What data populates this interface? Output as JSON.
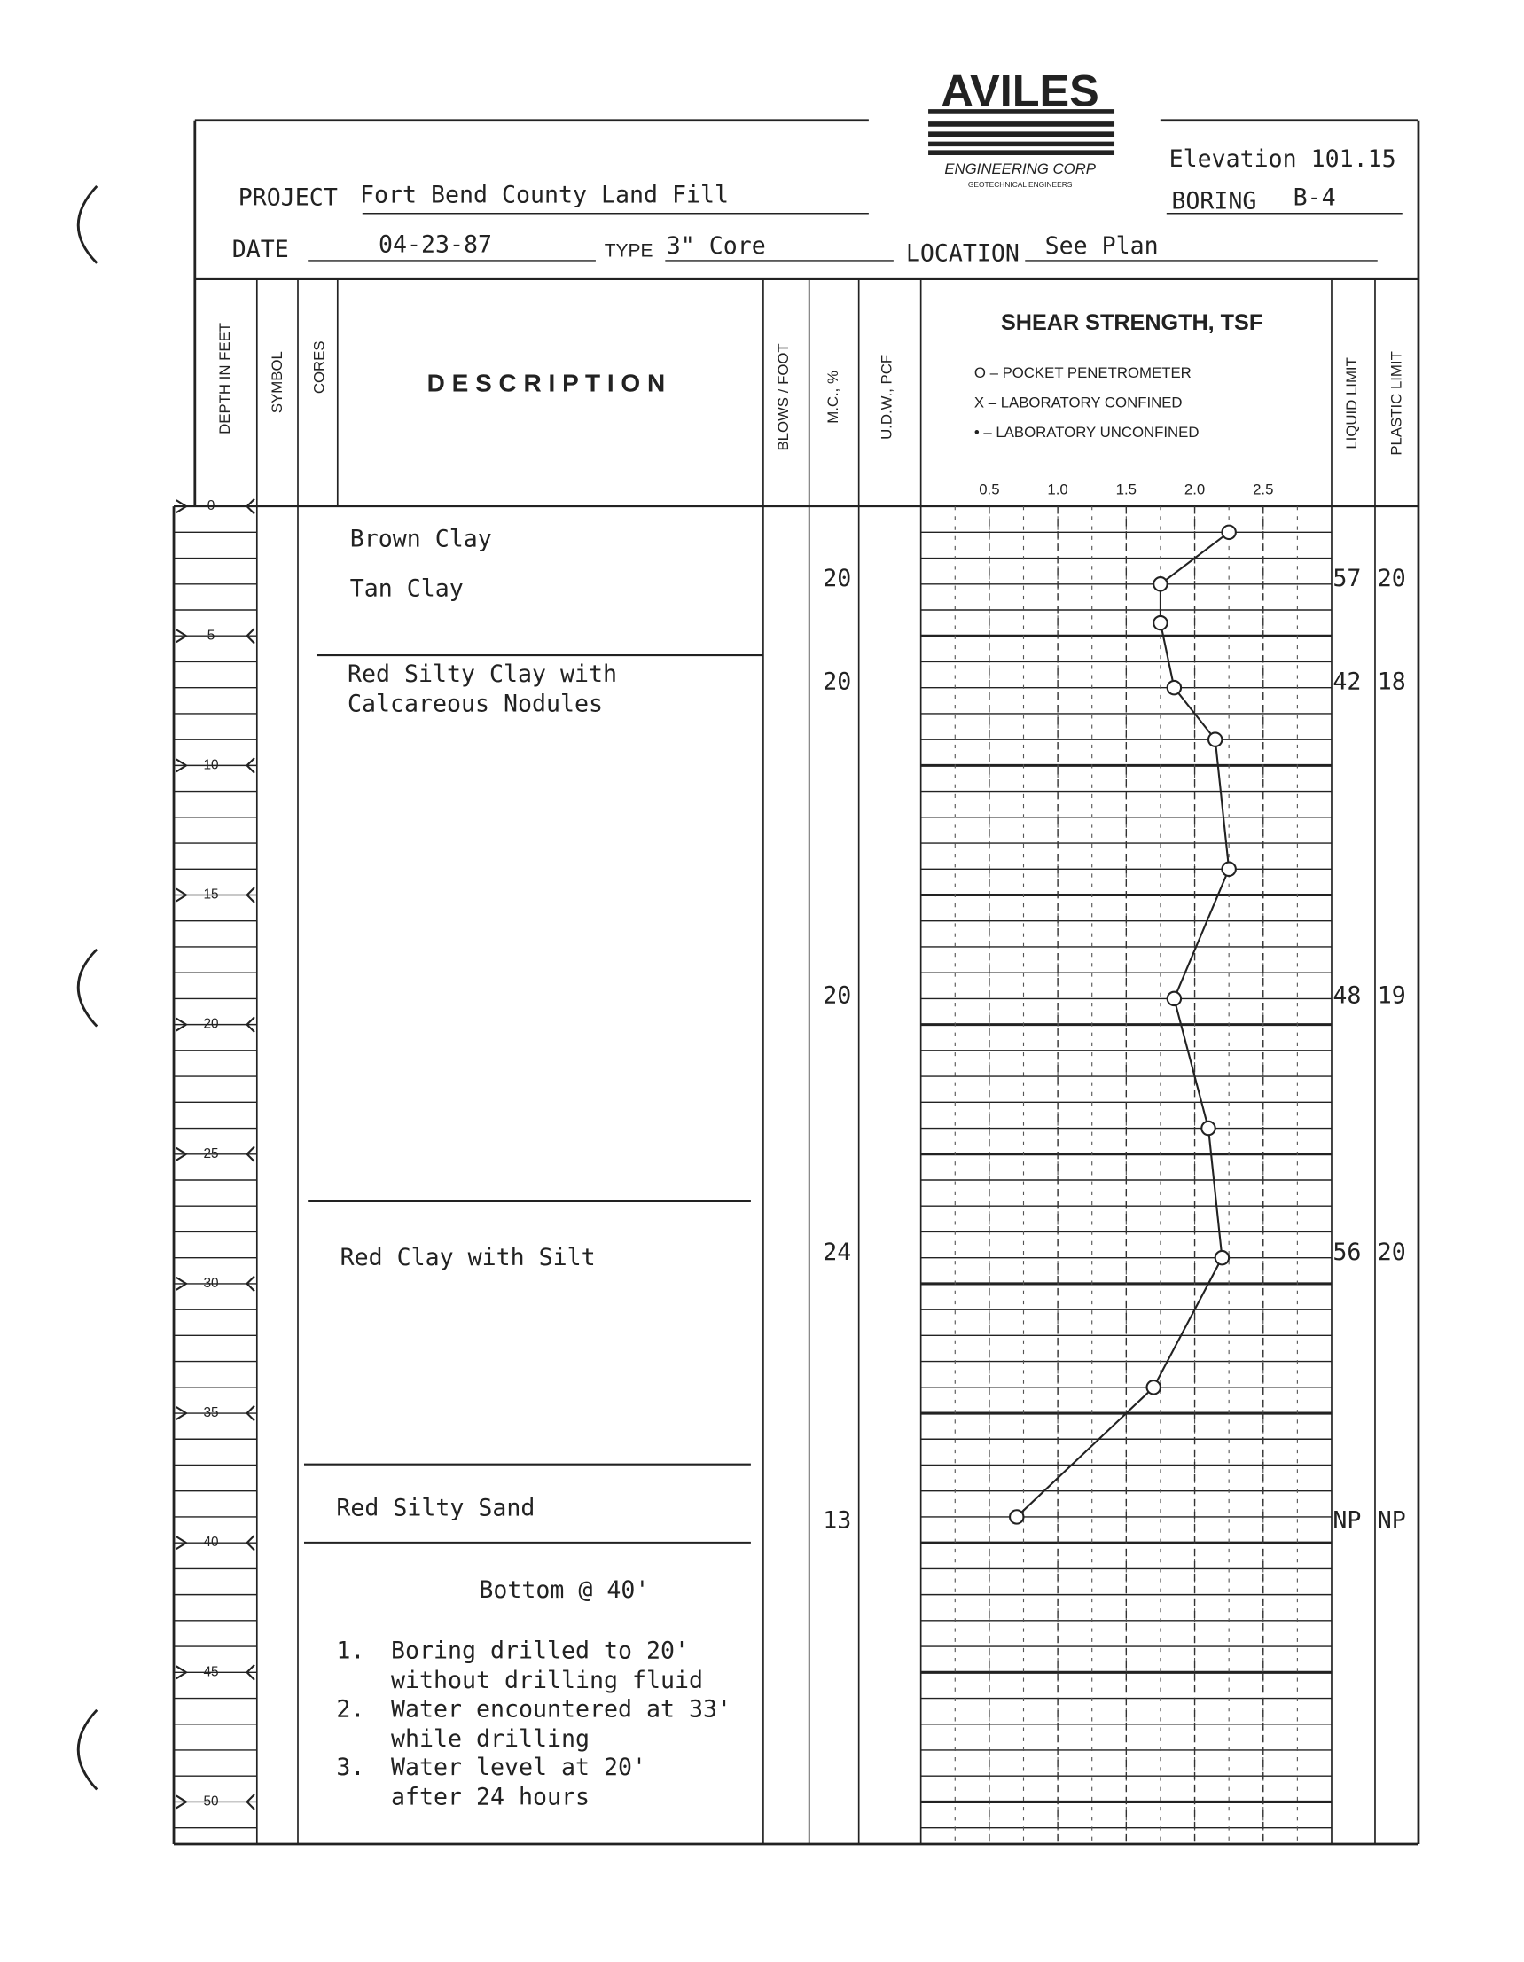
{
  "logo": {
    "name": "AVILES",
    "line1": "ENGINEERING CORP",
    "line2": "GEOTECHNICAL ENGINEERS"
  },
  "header": {
    "project_label": "PROJECT",
    "project": "Fort Bend County Land Fill",
    "date_label": "DATE",
    "date": "04-23-87",
    "type_label": "TYPE",
    "type": "3\" Core",
    "location_label": "LOCATION",
    "location": "See Plan",
    "elevation": "Elevation 101.15",
    "boring_label": "BORING",
    "boring": "B-4"
  },
  "columns": {
    "depth": "DEPTH IN FEET",
    "symbol": "SYMBOL",
    "cores": "CORES",
    "description": "D E S C R I P T I O N",
    "blows": "BLOWS / FOOT",
    "mc": "M.C., %",
    "udw": "U.D.W., PCF",
    "liquid": "LIQUID LIMIT",
    "plastic": "PLASTIC LIMIT"
  },
  "shear": {
    "title": "SHEAR STRENGTH, TSF",
    "legend": [
      "O  –  POCKET PENETROMETER",
      "X  –  LABORATORY   CONFINED",
      "•  –  LABORATORY UNCONFINED"
    ],
    "xlim": [
      0,
      3
    ],
    "xticks": [
      0.5,
      {
        "value": 1,
        "label": "1.0"
      },
      1.5,
      {
        "value": 2,
        "label": "2.0"
      },
      2.5
    ],
    "depth": [
      1,
      3,
      4.5,
      7,
      9,
      14,
      19,
      24,
      29,
      34,
      39
    ],
    "strength": [
      2.25,
      1.75,
      1.75,
      1.85,
      2.15,
      2.25,
      1.85,
      2.1,
      2.2,
      1.7,
      0.7
    ]
  },
  "depth_ticks": [
    0,
    5,
    10,
    15,
    20,
    25,
    30,
    35,
    40,
    45,
    50
  ],
  "description": [
    "Brown Clay",
    "Tan Clay",
    "Red Silty Clay with",
    "Calcareous Nodules",
    "Red Clay with Silt",
    "Red Silty Sand",
    "Bottom @ 40'"
  ],
  "notes": [
    "1.",
    "Boring drilled to 20'",
    "without drilling fluid",
    "2.",
    "Water encountered at 33'",
    "while drilling",
    "3.",
    "Water level at 20'",
    "after 24 hours"
  ],
  "tests": {
    "mc": [
      "20",
      "20",
      "20",
      "24",
      "13"
    ],
    "liquid": [
      "57",
      "42",
      "48",
      "56",
      "NP"
    ],
    "plastic": [
      "20",
      "18",
      "19",
      "20",
      "NP"
    ]
  }
}
